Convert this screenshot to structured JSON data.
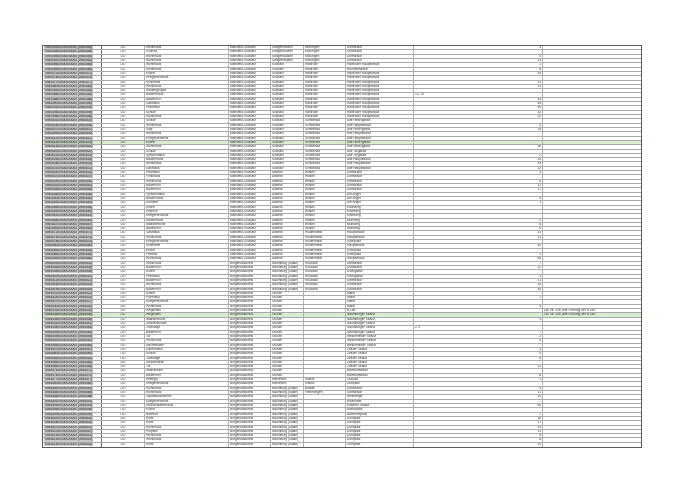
{
  "app": {
    "description": "Denkmalverzeichnis Sachsen-Anhalt Tabellenausschnitt",
    "colors": {
      "grid": "#a8a8a8",
      "outer_border": "#5a5a5a",
      "id_cell_bg": "#c9c9c9",
      "highlight_row_bg": "#d9ecd2",
      "text": "#333333",
      "page_bg": "#ffffff"
    }
  },
  "table": {
    "column_keys": [
      "id",
      "lfd",
      "objekt",
      "landkreis",
      "gemeinde",
      "ortsteil",
      "strasse",
      "hausnummer",
      "bemerkung"
    ],
    "highlighted_row_indices": [
      22,
      62
    ],
    "rows": [
      [
        "094055300000000000 (0940553)",
        "LfD",
        "Wohnhaus",
        "Mansfeld-Südharz",
        "Sangerhausen",
        "Morungen",
        "Dorfstraße",
        "4",
        ""
      ],
      [
        "094055800000000000 (0940558)",
        "LfD",
        "Schloss",
        "Mansfeld-Südharz",
        "Sangerhausen",
        "Morungen",
        "Dorfstraße",
        "",
        ""
      ],
      [
        "094055900000000000 (0940559)",
        "LfD",
        "Wohnhaus",
        "Mansfeld-Südharz",
        "Sangerhausen",
        "Morungen",
        "Dorfstraße",
        "9",
        ""
      ],
      [
        "094056100000000000 (0940561)",
        "LfD",
        "Wohnhaus",
        "Mansfeld-Südharz",
        "Sangerhausen",
        "Morungen",
        "Dorfstraße",
        "14",
        ""
      ],
      [
        "094056600000000000 (0940566)",
        "LfD",
        "Wohnhaus",
        "Mansfeld-Südharz",
        "Südharz",
        "Hainrode",
        "Hainröder Hauptstraße",
        "1",
        ""
      ],
      [
        "094056900000000000 (0940569)",
        "LfD",
        "Wohnhaus",
        "Mansfeld-Südharz",
        "Südharz",
        "Hainrode",
        "Brunnenstraße",
        "6",
        ""
      ],
      [
        "094057200000000000 (0940572)",
        "LfD",
        "Kirche",
        "Mansfeld-Südharz",
        "Südharz",
        "Hainrode",
        "Hainröder Hauptstraße",
        "34",
        ""
      ],
      [
        "094057400000000000 (0940574)",
        "LfD",
        "Kriegerdenkmal",
        "Mansfeld-Südharz",
        "Südharz",
        "Hainrode",
        "Hainröder Hauptstraße",
        "",
        ""
      ],
      [
        "094057700000000000 (0940577)",
        "LfD",
        "Schmiede",
        "Mansfeld-Südharz",
        "Südharz",
        "Hainrode",
        "Hainröder Hauptstraße",
        "21",
        ""
      ],
      [
        "094058000000000000 (0940580)",
        "LfD",
        "Wohnhaus",
        "Mansfeld-Südharz",
        "Südharz",
        "Hainrode",
        "Hainröder Hauptstraße",
        "23",
        ""
      ],
      [
        "094058300000000000 (0940583)",
        "LfD",
        "Häusergruppe",
        "Mansfeld-Südharz",
        "Südharz",
        "Hainrode",
        "Hainröder Hauptstraße",
        "",
        ""
      ],
      [
        "094058500000000000 (0940585)",
        "LfD",
        "Bauernhaus",
        "Mansfeld-Südharz",
        "Südharz",
        "Hainrode",
        "Hainröder Hauptstraße",
        "13, 14",
        ""
      ],
      [
        "094058800000000000 (0940588)",
        "LfD",
        "Bauernhof",
        "Mansfeld-Südharz",
        "Südharz",
        "Hainrode",
        "Hainröder Hauptstraße",
        "53",
        ""
      ],
      [
        "094059000000000000 (0940590)",
        "LfD",
        "Gasthaus",
        "Mansfeld-Südharz",
        "Südharz",
        "Hainrode",
        "Hainröder Hauptstraße",
        "59",
        ""
      ],
      [
        "094059300000000000 (0940593)",
        "LfD",
        "Pfarrhaus",
        "Mansfeld-Südharz",
        "Südharz",
        "Hainrode",
        "Hainröder Hauptstraße",
        "46",
        ""
      ],
      [
        "094059500000000000 (0940595)",
        "LfD",
        "Schule",
        "Mansfeld-Südharz",
        "Südharz",
        "Hainrode",
        "Hainröder Hauptstraße",
        "32",
        ""
      ],
      [
        "094059800000000000 (0940598)",
        "LfD",
        "Wohnhaus",
        "Mansfeld-Südharz",
        "Südharz",
        "Hainrode",
        "Hainröder Hauptstraße",
        "20",
        ""
      ],
      [
        "094060100000000000 (0940601)",
        "LfD",
        "Schule",
        "Mansfeld-Südharz",
        "Südharz",
        "Schwenda",
        "Alte Hintergasse",
        "",
        ""
      ],
      [
        "094060400000000000 (0940604)",
        "LfD",
        "Wohnhaus",
        "Mansfeld-Südharz",
        "Südharz",
        "Schwenda",
        "Alte Hauptstraße",
        "4",
        ""
      ],
      [
        "094060700000000000 (0940607)",
        "LfD",
        "Saal",
        "Mansfeld-Südharz",
        "Südharz",
        "Schwenda",
        "Alte Hintergasse",
        "15",
        ""
      ],
      [
        "094060900000000000 (0940609)",
        "LfD",
        "Wohnhaus",
        "Mansfeld-Südharz",
        "Südharz",
        "Schwenda",
        "Alte Hauptstraße",
        "",
        ""
      ],
      [
        "094061200000000000 (0940612)",
        "LfD",
        "Kriegerdenkmal",
        "Mansfeld-Südharz",
        "Südharz",
        "Schwenda",
        "Alte Hauptstraße",
        "",
        ""
      ],
      [
        "094061500000000000 (0940615)",
        "LfD",
        "Kirche",
        "Mansfeld-Südharz",
        "Südharz",
        "Schwenda",
        "Alte Hintergasse",
        "",
        ""
      ],
      [
        "094061800000000000 (0940618)",
        "LfD",
        "Wohnhaus",
        "Mansfeld-Südharz",
        "Südharz",
        "Schwenda",
        "Alte Hintergasse",
        "26",
        ""
      ],
      [
        "094062000000000000 (0940620)",
        "LfD",
        "Schule",
        "Mansfeld-Südharz",
        "Südharz",
        "Schwenda",
        "Alte Torgasse",
        "",
        ""
      ],
      [
        "094062300000000000 (0940623)",
        "LfD",
        "Spritzenhaus",
        "Mansfeld-Südharz",
        "Südharz",
        "Schwenda",
        "Alte Torgasse",
        "2",
        ""
      ],
      [
        "094062600000000000 (0940626)",
        "LfD",
        "Bauernhaus",
        "Mansfeld-Südharz",
        "Südharz",
        "Schwenda",
        "Alte Hauptstraße",
        "31",
        ""
      ],
      [
        "094062800000000000 (0940628)",
        "LfD",
        "Wohnhaus",
        "Mansfeld-Südharz",
        "Südharz",
        "Schwenda",
        "Alte Hauptstraße",
        "44",
        ""
      ],
      [
        "094063100000000000 (0940631)",
        "LfD",
        "Gasthaus",
        "Mansfeld-Südharz",
        "Südharz",
        "Schwenda",
        "Alte Hauptstraße",
        "12",
        ""
      ],
      [
        "094063400000000000 (0940634)",
        "LfD",
        "Pfarrhaus",
        "Mansfeld-Südharz",
        "Allstedt",
        "Winkel",
        "Dorfstraße",
        "3",
        ""
      ],
      [
        "094063700000000000 (0940637)",
        "LfD",
        "Forsthaus",
        "Mansfeld-Südharz",
        "Allstedt",
        "Winkel",
        "Dorfstraße",
        "",
        ""
      ],
      [
        "094063900000000000 (0940639)",
        "LfD",
        "Wohnhaus",
        "Mansfeld-Südharz",
        "Allstedt",
        "Winkel",
        "Dorfstraße",
        "8",
        ""
      ],
      [
        "094064200000000000 (0940642)",
        "LfD",
        "Bauernhof",
        "Mansfeld-Südharz",
        "Allstedt",
        "Winkel",
        "Dorfstraße",
        "11",
        ""
      ],
      [
        "094064500000000000 (0940645)",
        "LfD",
        "Bauernhof",
        "Mansfeld-Südharz",
        "Allstedt",
        "Winkel",
        "Dorfstraße",
        "17",
        ""
      ],
      [
        "094064800000000000 (0940648)",
        "LfD",
        "Spritzenhaus",
        "Mansfeld-Südharz",
        "Allstedt",
        "Winkel",
        "Am Anger",
        "",
        ""
      ],
      [
        "094065000000000000 (0940650)",
        "LfD",
        "Bauernhaus",
        "Mansfeld-Südharz",
        "Allstedt",
        "Winkel",
        "Am Anger",
        "5",
        ""
      ],
      [
        "094065300000000000 (0940653)",
        "LfD",
        "Domäne",
        "Mansfeld-Südharz",
        "Allstedt",
        "Winkel",
        "Am Anger",
        "1",
        ""
      ],
      [
        "094065600000000000 (0940656)",
        "LfD",
        "Kirche",
        "Mansfeld-Südharz",
        "Allstedt",
        "Winkel",
        "Kirchberg",
        "",
        ""
      ],
      [
        "094065900000000000 (0940659)",
        "LfD",
        "Kirchhof",
        "Mansfeld-Südharz",
        "Allstedt",
        "Winkel",
        "Kirchberg",
        "",
        ""
      ],
      [
        "094066100000000000 (0940661)",
        "LfD",
        "Kriegerdenkmal",
        "Mansfeld-Südharz",
        "Allstedt",
        "Winkel",
        "Kirchberg",
        "",
        ""
      ],
      [
        "094066400000000000 (0940664)",
        "LfD",
        "Bauernhaus",
        "Mansfeld-Südharz",
        "Allstedt",
        "Winkel",
        "Mühlweg",
        "2",
        ""
      ],
      [
        "094066700000000000 (0940667)",
        "LfD",
        "Wassermühle",
        "Mansfeld-Südharz",
        "Allstedt",
        "Winkel",
        "Mühlweg",
        "6",
        ""
      ],
      [
        "094066900000000000 (0940669)",
        "LfD",
        "Bauernhof",
        "Mansfeld-Südharz",
        "Allstedt",
        "Winkel",
        "Mühlweg",
        "9",
        ""
      ],
      [
        "094067200000000000 (0940672)",
        "LfD",
        "Gasthaus",
        "Mansfeld-Südharz",
        "Allstedt",
        "Holdenstedt",
        "Hauptstraße",
        "23",
        ""
      ],
      [
        "094067500000000000 (0940675)",
        "LfD",
        "Wohnhaus",
        "Mansfeld-Südharz",
        "Allstedt",
        "Holdenstedt",
        "Hauptstraße",
        "31",
        ""
      ],
      [
        "094067800000000000 (0940678)",
        "LfD",
        "Kriegerdenkmal",
        "Mansfeld-Südharz",
        "Allstedt",
        "Holdenstedt",
        "Kirchplatz",
        "",
        ""
      ],
      [
        "094068000000000000 (0940680)",
        "LfD",
        "Schmiede",
        "Mansfeld-Südharz",
        "Allstedt",
        "Holdenstedt",
        "Hauptstraße",
        "40",
        ""
      ],
      [
        "094068300000000000 (0940683)",
        "LfD",
        "Kirche",
        "Mansfeld-Südharz",
        "Allstedt",
        "Holdenstedt",
        "Kirchplatz",
        "",
        ""
      ],
      [
        "094068600000000000 (0940686)",
        "LfD",
        "Pfarrhof",
        "Mansfeld-Südharz",
        "Allstedt",
        "Holdenstedt",
        "Kirchplatz",
        "2",
        ""
      ],
      [
        "094068900000000000 (0940689)",
        "LfD",
        "Wohnhaus",
        "Mansfeld-Südharz",
        "Allstedt",
        "Holdenstedt",
        "Hauptstraße",
        "55",
        ""
      ],
      [
        "094550200000000000 (0945502)",
        "LfD",
        "Wohnhaus",
        "Burgenlandkreis",
        "Naumburg (Saale)",
        "Roßbach",
        "Dorfstraße",
        "7",
        ""
      ],
      [
        "094550500000000000 (0945505)",
        "LfD",
        "Bauernhof",
        "Burgenlandkreis",
        "Naumburg (Saale)",
        "Roßbach",
        "Dorfstraße",
        "12",
        ""
      ],
      [
        "094550800000000000 (0945508)",
        "LfD",
        "Kirche",
        "Burgenlandkreis",
        "Naumburg (Saale)",
        "Roßbach",
        "Kirchgasse",
        "",
        ""
      ],
      [
        "094551000000000000 (0945510)",
        "LfD",
        "Pfarrhaus",
        "Burgenlandkreis",
        "Naumburg (Saale)",
        "Roßbach",
        "Kirchgasse",
        "3",
        ""
      ],
      [
        "094551300000000000 (0945513)",
        "LfD",
        "Bauernhof",
        "Burgenlandkreis",
        "Naumburg (Saale)",
        "Roßbach",
        "Dorfstraße",
        "21",
        ""
      ],
      [
        "094551600000000000 (0945516)",
        "LfD",
        "Wohnhaus",
        "Burgenlandkreis",
        "Naumburg (Saale)",
        "Roßbach",
        "Dorfstraße",
        "26",
        ""
      ],
      [
        "094551900000000000 (0945519)",
        "LfD",
        "Bauernhof",
        "Burgenlandkreis",
        "Naumburg (Saale)",
        "Roßbach",
        "Dorfstraße",
        "30",
        ""
      ],
      [
        "094552200000000000 (0945522)",
        "LfD",
        "Kirche",
        "Burgenlandkreis",
        "Stößen",
        "",
        "Markt",
        "",
        ""
      ],
      [
        "094552400000000000 (0945524)",
        "LfD",
        "Pfarrhaus",
        "Burgenlandkreis",
        "Stößen",
        "",
        "Markt",
        "1",
        ""
      ],
      [
        "094552700000000000 (0945527)",
        "LfD",
        "Kriegerdenkmal",
        "Burgenlandkreis",
        "Stößen",
        "",
        "Markt",
        "",
        ""
      ],
      [
        "094553000000000000 (0945530)",
        "LfD",
        "Wohnhaus",
        "Burgenlandkreis",
        "Stößen",
        "",
        "Markt",
        "9",
        ""
      ],
      [
        "094553300000000000 (0945533)",
        "LfD",
        "Wegestein",
        "Burgenlandkreis",
        "Stößen",
        "",
        "B 180",
        "",
        "Lfd. Nr. 20a „alte Führung der B 180“"
      ],
      [
        "094553500000000000 (0945535)",
        "LfD",
        "Wegestein",
        "Burgenlandkreis",
        "Stößen",
        "",
        "Naumburger Straße",
        "",
        "Lfd. Nr. 20a „alte Führung der B 180“"
      ],
      [
        "094553800000000000 (0945538)",
        "LfD",
        "Wassermühle",
        "Burgenlandkreis",
        "Stößen",
        "",
        "Naumburger Straße",
        "4",
        ""
      ],
      [
        "094554100000000000 (0945541)",
        "LfD",
        "Straßenbrücke",
        "Burgenlandkreis",
        "Stößen",
        "",
        "Naumburger Straße",
        "",
        ""
      ],
      [
        "094554400000000000 (0945544)",
        "LfD",
        "Toranlage",
        "Burgenlandkreis",
        "Stößen",
        "",
        "Naumburger Straße",
        "2, 3",
        ""
      ],
      [
        "094554600000000000 (0945546)",
        "LfD",
        "Bauernhof",
        "Burgenlandkreis",
        "Stößen",
        "",
        "Naumburger Straße",
        "7",
        ""
      ],
      [
        "094554900000000000 (0945549)",
        "LfD",
        "Tor",
        "Burgenlandkreis",
        "Stößen",
        "",
        "Weißenfelser Straße",
        "2",
        ""
      ],
      [
        "094555200000000000 (0945552)",
        "LfD",
        "Wohnhaus",
        "Burgenlandkreis",
        "Stößen",
        "",
        "Weißenfelser Straße",
        "4",
        ""
      ],
      [
        "094555500000000000 (0945555)",
        "LfD",
        "Inschriftstein",
        "Burgenlandkreis",
        "Stößen",
        "",
        "Weißenfelser Straße",
        "",
        ""
      ],
      [
        "094555700000000000 (0945557)",
        "LfD",
        "Gartenhaus",
        "Burgenlandkreis",
        "Stößen",
        "",
        "Zeitzer Straße",
        "3",
        ""
      ],
      [
        "094556000000000000 (0945560)",
        "LfD",
        "Schule",
        "Burgenlandkreis",
        "Stößen",
        "",
        "Zeitzer Straße",
        "5",
        ""
      ],
      [
        "094556300000000000 (0945563)",
        "LfD",
        "Toranlage",
        "Burgenlandkreis",
        "Stößen",
        "",
        "Zeitzer Straße",
        "8",
        ""
      ],
      [
        "094556600000000000 (0945566)",
        "LfD",
        "Straßenzeile",
        "Burgenlandkreis",
        "Stößen",
        "",
        "Zeitzer Straße",
        "",
        ""
      ],
      [
        "094556800000000000 (0945568)",
        "LfD",
        "Tor",
        "Burgenlandkreis",
        "Stößen",
        "",
        "Zeitzer Straße",
        "12",
        ""
      ],
      [
        "094557100000000000 (0945571)",
        "LfD",
        "Wasserturm",
        "Burgenlandkreis",
        "Stößen",
        "",
        "Bahnhofstraße",
        "",
        ""
      ],
      [
        "094557400000000000 (0945574)",
        "LfD",
        "Bauernhof",
        "Burgenlandkreis",
        "Stößen",
        "",
        "Bahnhofstraße",
        "6",
        ""
      ],
      [
        "094557700000000000 (0945577)",
        "LfD",
        "Rittergut",
        "Burgenlandkreis",
        "Meineweh",
        "Kistritz",
        "Gutshof",
        "1",
        ""
      ],
      [
        "094558000000000000 (0945580)",
        "LfD",
        "Kriegerdenkmal",
        "Burgenlandkreis",
        "Meineweh",
        "Kistritz",
        "Dorfplatz",
        "",
        ""
      ],
      [
        "094558200000000000 (0945582)",
        "LfD",
        "Wohnhaus",
        "Burgenlandkreis",
        "Naumburg (Saale)",
        "Boblas",
        "Dorfstraße",
        "5",
        ""
      ],
      [
        "094558500000000000 (0945585)",
        "LfD",
        "Wohnhaus",
        "Burgenlandkreis",
        "Naumburg (Saale)",
        "Flemmingen",
        "Dorfstraße",
        "11",
        ""
      ],
      [
        "094558800000000000 (0945588)",
        "LfD",
        "Gasthausbrauerei",
        "Burgenlandkreis",
        "Naumburg (Saale)",
        "",
        "Weinberge",
        "24",
        ""
      ],
      [
        "094559100000000000 (0945591)",
        "LfD",
        "Kriegerdenkmal",
        "Burgenlandkreis",
        "Naumburg (Saale)",
        "",
        "Holzmarkt",
        "",
        ""
      ],
      [
        "094559300000000000 (0945593)",
        "LfD",
        "Straßenwärterhaus",
        "Burgenlandkreis",
        "Naumburg (Saale)",
        "",
        "Kösener Straße",
        "60",
        ""
      ],
      [
        "094559600000000000 (0945596)",
        "LfD",
        "Kirche",
        "Burgenlandkreis",
        "Naumburg (Saale)",
        "",
        "Moritzplatz",
        "",
        ""
      ],
      [
        "094559900000000000 (0945599)",
        "LfD",
        "Bahnhof",
        "Burgenlandkreis",
        "Naumburg (Saale)",
        "",
        "Bahnhofsplatz",
        "1",
        ""
      ],
      [
        "094560200000000000 (0945602)",
        "LfD",
        "Kurie",
        "Burgenlandkreis",
        "Naumburg (Saale)",
        "",
        "Domplatz",
        "16",
        ""
      ],
      [
        "094560400000000000 (0945604)",
        "LfD",
        "Kurie",
        "Burgenlandkreis",
        "Naumburg (Saale)",
        "",
        "Domplatz",
        "17",
        ""
      ],
      [
        "094560700000000000 (0945607)",
        "LfD",
        "Wohnhaus",
        "Burgenlandkreis",
        "Naumburg (Saale)",
        "",
        "Domplatz",
        "19",
        ""
      ],
      [
        "094561000000000000 (0945610)",
        "LfD",
        "Propstei",
        "Burgenlandkreis",
        "Naumburg (Saale)",
        "",
        "Domplatz",
        "13",
        ""
      ],
      [
        "094561300000000000 (0945613)",
        "LfD",
        "Wohnhaus",
        "Burgenlandkreis",
        "Naumburg (Saale)",
        "",
        "Domplatz",
        "9",
        ""
      ],
      [
        "094561500000000000 (0945615)",
        "LfD",
        "Wohnhaus",
        "Burgenlandkreis",
        "Naumburg (Saale)",
        "",
        "Domplatz",
        "8",
        ""
      ],
      [
        "094561800000000000 (0945618)",
        "LfD",
        "Kurie",
        "Burgenlandkreis",
        "Naumburg (Saale)",
        "",
        "Domplatz",
        "10",
        ""
      ]
    ]
  }
}
